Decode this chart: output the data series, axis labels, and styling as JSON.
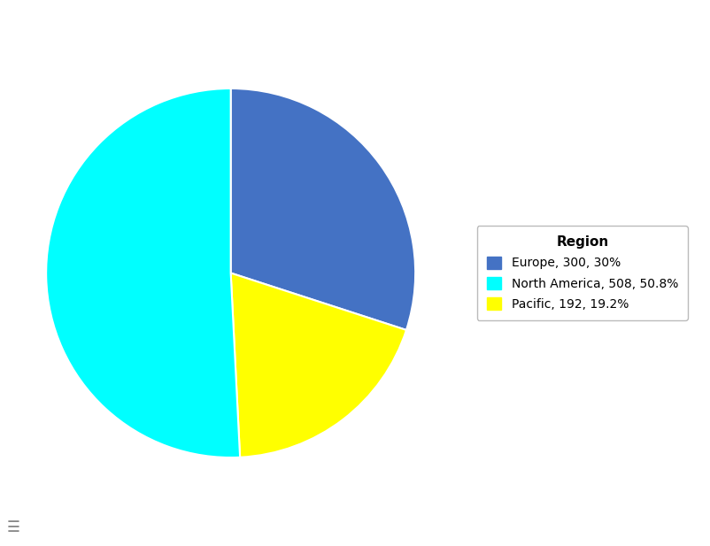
{
  "regions": [
    "Europe",
    "Pacific",
    "North America"
  ],
  "values": [
    300,
    192,
    508
  ],
  "colors": [
    "#4472C4",
    "#FFFF00",
    "#00FFFF"
  ],
  "legend_labels": [
    "Europe, 300, 30%",
    "North America, 508, 50.8%",
    "Pacific, 192, 19.2%"
  ],
  "legend_colors": [
    "#4472C4",
    "#00FFFF",
    "#FFFF00"
  ],
  "legend_title": "Region",
  "background_color": "#ffffff",
  "startangle": 90,
  "label_fontsize": 11,
  "legend_fontsize": 10,
  "legend_title_fontsize": 11
}
